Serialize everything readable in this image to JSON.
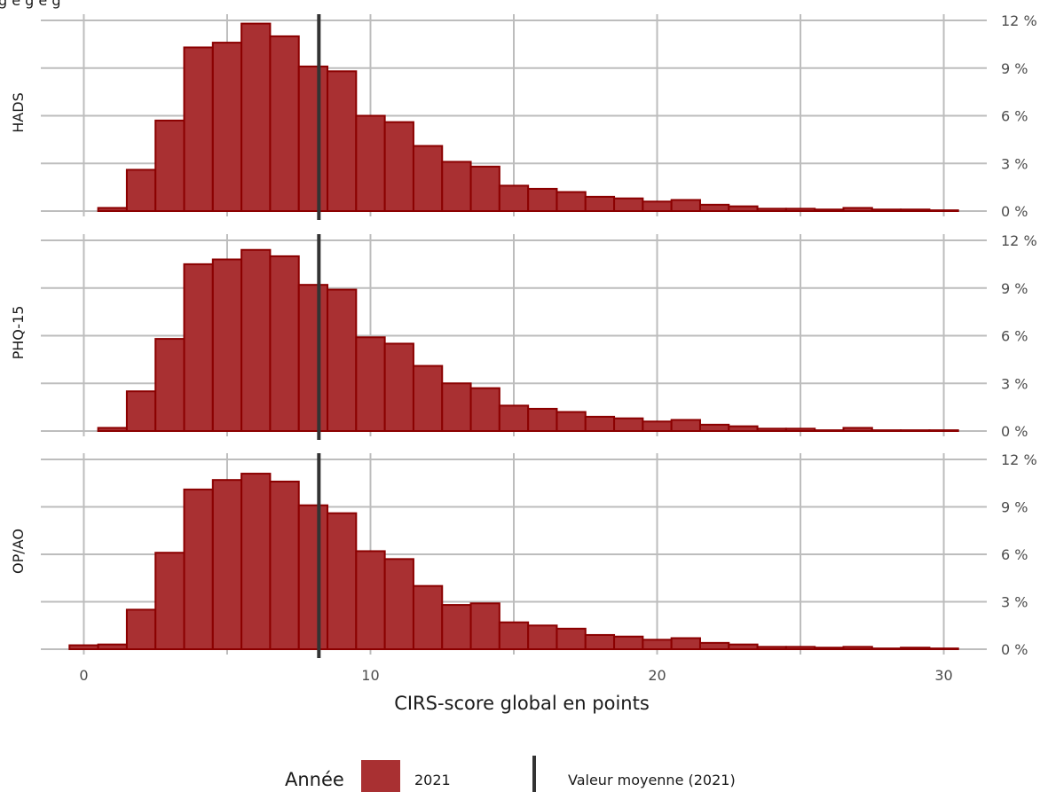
{
  "top_text_fragment": "g   e   g   e   g",
  "chart_data": {
    "type": "bar",
    "xlabel": "CIRS-score global en points",
    "x_ticks": [
      0,
      10,
      20,
      30
    ],
    "xlim": [
      -1.5,
      31.5
    ],
    "y_ticks": [
      "0 %",
      "3 %",
      "6 %",
      "9 %",
      "12 %"
    ],
    "ylim": [
      0,
      12
    ],
    "grid": true,
    "bin_start": -0.5,
    "bin_width": 1,
    "mean_value": 8.2,
    "bar_color": "#a93032",
    "bar_border": "#8b0000",
    "mean_color": "#333333",
    "legend": {
      "title": "Année",
      "fill_label": "2021",
      "line_label": "Valeur moyenne (2021)",
      "placement": "bottom"
    },
    "panels": [
      {
        "label": "HADS",
        "values": [
          0,
          0.2,
          2.6,
          5.7,
          10.3,
          10.6,
          11.8,
          11.0,
          9.1,
          8.8,
          6.0,
          5.6,
          4.1,
          3.1,
          2.8,
          1.6,
          1.4,
          1.2,
          0.9,
          0.8,
          0.6,
          0.7,
          0.4,
          0.3,
          0.15,
          0.15,
          0.1,
          0.2,
          0.1,
          0.1,
          0.05
        ]
      },
      {
        "label": "PHQ-15",
        "values": [
          0,
          0.2,
          2.5,
          5.8,
          10.5,
          10.8,
          11.4,
          11.0,
          9.2,
          8.9,
          5.9,
          5.5,
          4.1,
          3.0,
          2.7,
          1.6,
          1.4,
          1.2,
          0.9,
          0.8,
          0.6,
          0.7,
          0.4,
          0.3,
          0.15,
          0.15,
          0.05,
          0.2,
          0.05,
          0.05,
          0.05
        ]
      },
      {
        "label": "OP/AO",
        "values": [
          0.25,
          0.3,
          2.5,
          6.1,
          10.1,
          10.7,
          11.1,
          10.6,
          9.1,
          8.6,
          6.2,
          5.7,
          4.0,
          2.8,
          2.9,
          1.7,
          1.5,
          1.3,
          0.9,
          0.8,
          0.6,
          0.7,
          0.4,
          0.3,
          0.15,
          0.15,
          0.1,
          0.15,
          0.05,
          0.1,
          0.05
        ]
      }
    ]
  }
}
